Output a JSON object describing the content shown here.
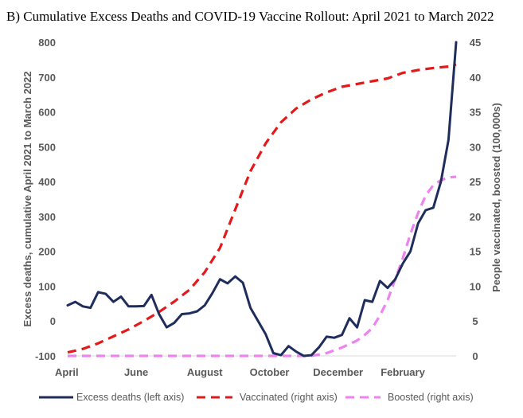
{
  "chart_data": {
    "type": "line",
    "title": "B)  Cumulative Excess Deaths and COVID-19 Vaccine Rollout: April 2021 to March 2022",
    "ylabel_left": "Excess deaths, cumulative April 2021 to March 2022",
    "ylabel_right": "People vaccinated, boosted (100,000s)",
    "ylim_left": [
      -100,
      800
    ],
    "ylim_right": [
      0,
      45
    ],
    "yticks_left": [
      -100,
      0,
      100,
      200,
      300,
      400,
      500,
      600,
      700,
      800
    ],
    "yticks_right": [
      0,
      5,
      10,
      15,
      20,
      25,
      30,
      35,
      40,
      45
    ],
    "xlim_weeks": [
      0,
      51
    ],
    "month_labels": [
      {
        "label": "April",
        "week": 0
      },
      {
        "label": "June",
        "week": 9
      },
      {
        "label": "August",
        "week": 18
      },
      {
        "label": "October",
        "week": 26.5
      },
      {
        "label": "December",
        "week": 35.5
      },
      {
        "label": "February",
        "week": 44
      }
    ],
    "grid": false,
    "legend_position": "bottom",
    "series": [
      {
        "name": "Excess deaths (left axis)",
        "axis": "left",
        "color": "#1f2d5c",
        "style": "solid",
        "x": [
          0,
          1,
          2,
          3,
          4,
          5,
          6,
          7,
          8,
          9,
          10,
          11,
          12,
          13,
          14,
          15,
          16,
          17,
          18,
          19,
          20,
          21,
          22,
          23,
          24,
          25,
          26,
          27,
          28,
          29,
          30,
          31,
          32,
          33,
          34,
          35,
          36,
          37,
          38,
          39,
          40,
          41,
          42,
          43,
          44,
          45,
          46,
          47,
          48,
          49,
          50,
          51
        ],
        "values": [
          45,
          55,
          42,
          38,
          83,
          78,
          55,
          70,
          42,
          42,
          43,
          75,
          20,
          -18,
          -5,
          20,
          22,
          28,
          45,
          80,
          120,
          108,
          128,
          110,
          38,
          0,
          -38,
          -92,
          -98,
          -72,
          -88,
          -100,
          -98,
          -75,
          -45,
          -48,
          -40,
          8,
          -18,
          60,
          55,
          115,
          95,
          120,
          165,
          200,
          280,
          318,
          325,
          400,
          520,
          800
        ]
      },
      {
        "name": "Vaccinated (right axis)",
        "axis": "right",
        "color": "#e31a1c",
        "style": "dashed",
        "x": [
          0,
          2,
          4,
          6,
          8,
          10,
          12,
          14,
          16,
          18,
          20,
          22,
          24,
          26,
          28,
          30,
          32,
          34,
          36,
          38,
          40,
          42,
          44,
          46,
          48,
          50,
          51
        ],
        "values": [
          0.5,
          1,
          1.8,
          2.8,
          3.8,
          5,
          6.3,
          7.8,
          9.5,
          12,
          15.5,
          21,
          26.5,
          30.5,
          33.5,
          35.5,
          36.8,
          37.8,
          38.6,
          39,
          39.4,
          39.8,
          40.6,
          41,
          41.3,
          41.5,
          41.8
        ]
      },
      {
        "name": "Boosted (right axis)",
        "axis": "right",
        "color": "#ee82ee",
        "style": "dashed",
        "x": [
          0,
          4,
          8,
          12,
          16,
          20,
          24,
          28,
          30,
          32,
          34,
          36,
          38,
          39,
          40,
          41,
          42,
          43,
          44,
          45,
          46,
          47,
          48,
          49,
          50,
          51
        ],
        "values": [
          0,
          0,
          0,
          0,
          0,
          0,
          0,
          0,
          0,
          0,
          0.4,
          1.2,
          2.2,
          3,
          4,
          5.8,
          8,
          11,
          14,
          17.5,
          20.5,
          23,
          24.5,
          25.2,
          25.6,
          25.7
        ]
      }
    ]
  }
}
